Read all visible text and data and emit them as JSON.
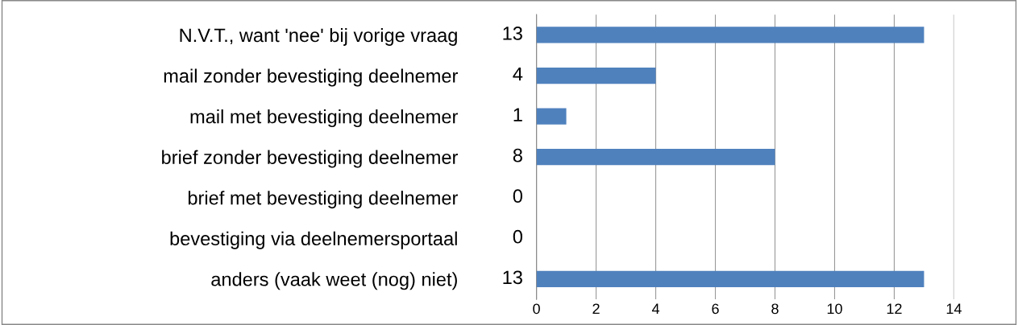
{
  "chart_data": {
    "type": "bar",
    "orientation": "horizontal",
    "categories": [
      "N.V.T., want 'nee' bij vorige vraag",
      "mail zonder bevestiging deelnemer",
      "mail met bevestiging deelnemer",
      "brief zonder bevestiging deelnemer",
      "brief met bevestiging deelnemer",
      "bevestiging via deelnemersportaal",
      "anders (vaak weet (nog) niet)"
    ],
    "values": [
      13,
      4,
      1,
      8,
      0,
      0,
      13
    ],
    "color": "#4f81bd",
    "data_labels": true,
    "xlim": [
      0,
      14
    ],
    "xticks": [
      0,
      2,
      4,
      6,
      8,
      10,
      12,
      14
    ],
    "grid": "x",
    "legend": false
  }
}
